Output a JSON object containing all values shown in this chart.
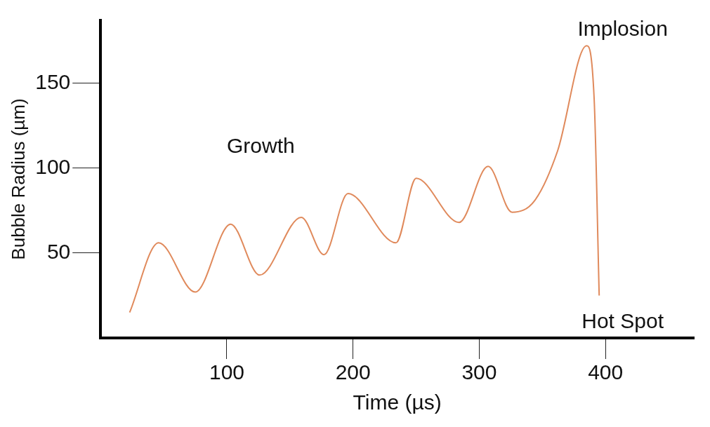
{
  "chart_data": {
    "type": "line",
    "xlabel": "Time (µs)",
    "ylabel": "Bubble Radius (µm)",
    "xlim": [
      0,
      470
    ],
    "ylim": [
      0,
      187
    ],
    "xticks": [
      100,
      200,
      300,
      400
    ],
    "yticks": [
      50,
      100,
      150
    ],
    "grid": false,
    "legend": false,
    "marker": "none",
    "line_style": "solid",
    "series": [
      {
        "color": "#e08a5c",
        "x": [
          23,
          46,
          75,
          103,
          126,
          159,
          177,
          196,
          234,
          250,
          284,
          307,
          326,
          344,
          362,
          385,
          391,
          395
        ],
        "values": [
          15,
          56,
          27,
          67,
          37,
          71,
          49,
          85,
          56,
          94,
          68,
          101,
          74,
          81,
          110,
          172,
          141,
          25
        ]
      }
    ],
    "annotations": [
      "Growth",
      "Implosion",
      "Hot Spot"
    ]
  }
}
